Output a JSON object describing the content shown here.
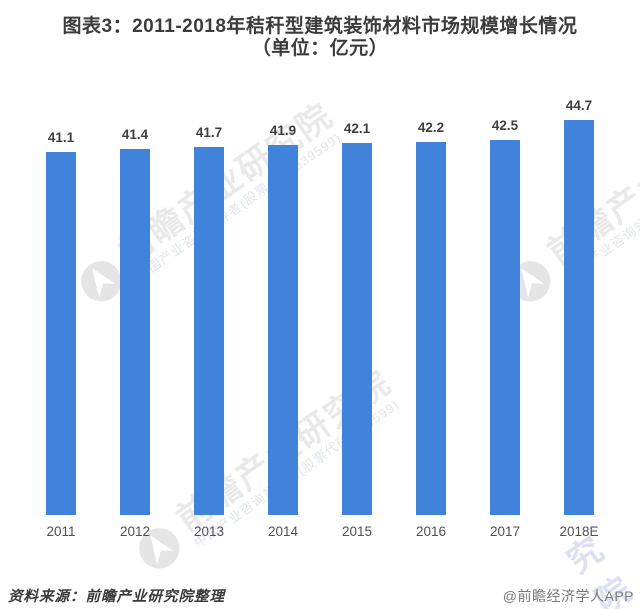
{
  "title": {
    "line1": "图表3：2011-2018年秸秆型建筑装饰材料市场规模增长情况",
    "line2": "（单位：亿元）"
  },
  "chart_data": {
    "type": "bar",
    "categories": [
      "2011",
      "2012",
      "2013",
      "2014",
      "2015",
      "2016",
      "2017",
      "2018E"
    ],
    "values": [
      41.1,
      41.4,
      41.7,
      41.9,
      42.1,
      42.2,
      42.5,
      44.7
    ],
    "title": "图表3：2011-2018年秸秆型建筑装饰材料市场规模增长情况（单位：亿元）",
    "xlabel": "",
    "ylabel": "亿元",
    "ylim": [
      0,
      46
    ],
    "grid": false,
    "legend": "none",
    "value_labels_shown": true,
    "bar_color": "#4182DB"
  },
  "colors": {
    "bar": "#4182DB",
    "title_text": "#3C3C3C",
    "value_label_text": "#3F3F3F",
    "axis_label_text": "#505050",
    "source_text": "#3A3A3A",
    "credit_text": "#7B7B7B"
  },
  "watermark": {
    "logo_icon": "qianzhan-circle-logo",
    "text": "前瞻产业研究院",
    "subtext": "中国产业咨询领导者(股票代码:839599)",
    "corner_fragment": "究院"
  },
  "footer": {
    "source": "资料来源：前瞻产业研究院整理",
    "credit": "@前瞻经济学人APP"
  }
}
